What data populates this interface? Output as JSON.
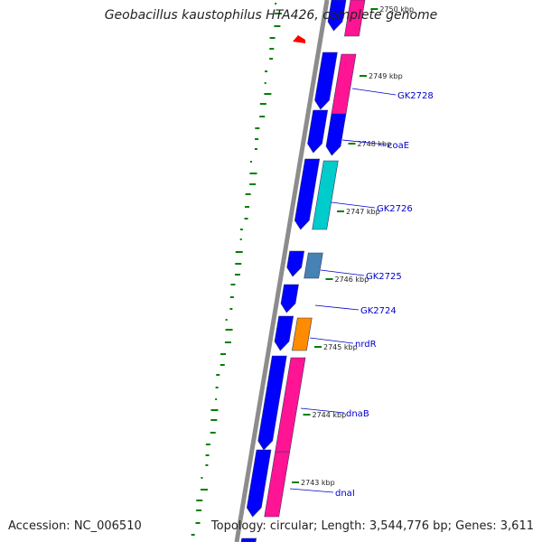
{
  "header": {
    "title": "Geobacillus kaustophilus HTA426, complete genome"
  },
  "footer": {
    "accession": "Accession: NC_006510",
    "summary": "Topology: circular; Length: 3,544,776 bp; Genes: 3,611"
  },
  "colors": {
    "backbone": "#8c8c8c",
    "forward_gene": "#0000ff",
    "cds_pink": "#ff1493",
    "cds_cyan": "#00cccc",
    "cds_steel": "#4682b4",
    "cds_orange": "#ff8c00",
    "label_color": "#0000cc",
    "tick_color": "#008000",
    "marker": "#ff0000"
  },
  "ruler": {
    "unit": "kbp",
    "positions": [
      2743,
      2744,
      2745,
      2746,
      2747,
      2748,
      2749,
      2750
    ],
    "labels": [
      "2743 kbp",
      "2744 kbp",
      "2745 kbp",
      "2746 kbp",
      "2747 kbp",
      "2748 kbp",
      "2749 kbp",
      "2750 kbp"
    ]
  },
  "gene_labels": [
    "dnaI",
    "dnaB",
    "nrdR",
    "GK2724",
    "GK2725",
    "GK2726",
    "coaE",
    "GK2728"
  ]
}
